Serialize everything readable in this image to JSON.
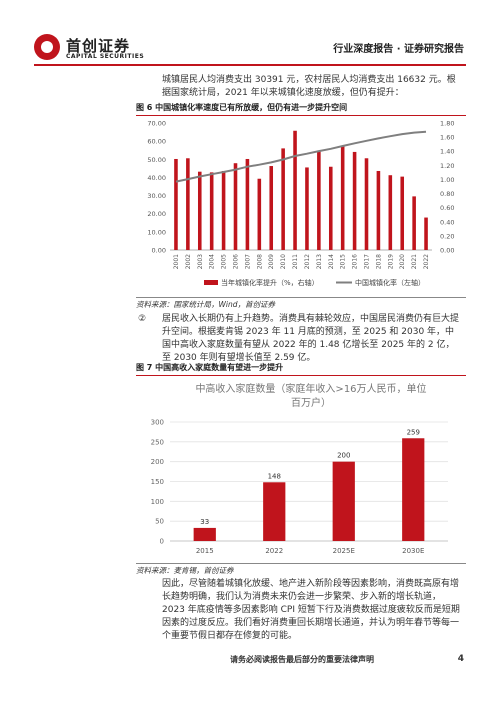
{
  "header": {
    "logo_cn": "首创证券",
    "logo_en": "CAPITAL SECURITIES",
    "report_type": "行业深度报告 · 证券研究报告"
  },
  "paragraphs": {
    "p1": "城镇居民人均消费支出 30391 元，农村居民人均消费支出 16632 元。根据国家统计局，2021 年以来城镇化速度放缓，但仍有提升：",
    "p2_num": "②",
    "p2": "居民收入长期仍有上升趋势。消费具有棘轮效应，中国居民消费仍有巨大提升空间。根据麦肯锡 2023 年 11 月底的预测，至 2025 和 2030 年，中国中高收入家庭数量有望从 2022 年的 1.48 亿增长至 2025 年的 2 亿，至 2030 年则有望增长值至 2.59 亿。",
    "p3": "因此，尽管随着城镇化放缓、地产进入新阶段等因素影响，消费既高原有增长趋势明确，我们认为消费未来仍会进一步繁荣、步入新的增长轨道，2023 年底疫情等多因素影响 CPI 短暂下行及消费数据过度疲软反而是短期因素的过度反应。我们看好消费重回长期增长通道，并认为明年春节等每一个重要节假日都存在修复的可能。"
  },
  "figure6": {
    "title": "图 6 中国城镇化率速度已有所放缓，但仍有进一步提升空间",
    "source": "资料来源：国家统计局，Wind，首创证券",
    "legend_bar": "当年城镇化率提升（%，右轴）",
    "legend_line": "中国城镇化率（左轴）"
  },
  "figure7": {
    "title": "图 7 中国高收入家庭数量有望进一步提升",
    "source": "资料来源：麦肯锡，首创证券",
    "inner_title_line1": "中高收入家庭数量（家庭年收入>16万人民币，单位",
    "inner_title_line2": "百万户）"
  },
  "chart_data": [
    {
      "type": "bar+line",
      "categories": [
        "2001",
        "2002",
        "2003",
        "2004",
        "2005",
        "2006",
        "2007",
        "2008",
        "2009",
        "2010",
        "2011",
        "2012",
        "2013",
        "2014",
        "2015",
        "2016",
        "2017",
        "2018",
        "2019",
        "2020",
        "2021",
        "2022"
      ],
      "left_axis": {
        "ylim": [
          0,
          70
        ],
        "ticks": [
          "0.00",
          "10.00",
          "20.00",
          "30.00",
          "40.00",
          "50.00",
          "60.00",
          "70.00"
        ]
      },
      "right_axis": {
        "ylim": [
          0,
          1.8
        ],
        "ticks": [
          "0.00",
          "0.20",
          "0.40",
          "0.60",
          "0.80",
          "1.00",
          "1.20",
          "1.40",
          "1.60",
          "1.80"
        ]
      },
      "series": [
        {
          "name": "当年城镇化率提升（%，右轴）",
          "type": "bar",
          "axis": "right",
          "color": "#c0141c",
          "values": [
            1.29,
            1.3,
            1.11,
            1.1,
            1.12,
            1.23,
            1.29,
            1.01,
            1.19,
            1.44,
            1.69,
            1.17,
            1.41,
            1.18,
            1.48,
            1.39,
            1.3,
            1.12,
            1.06,
            1.04,
            0.76,
            0.46
          ]
        },
        {
          "name": "中国城镇化率（左轴）",
          "type": "line",
          "axis": "left",
          "color": "#7f7f7f",
          "values": [
            37.7,
            39.1,
            40.5,
            41.8,
            43.0,
            44.3,
            45.9,
            47.0,
            48.3,
            49.9,
            51.8,
            53.1,
            54.5,
            55.8,
            57.3,
            58.8,
            60.2,
            61.5,
            62.7,
            63.9,
            64.7,
            65.2
          ]
        }
      ],
      "legend_position": "bottom"
    },
    {
      "type": "bar",
      "categories": [
        "2015",
        "2022",
        "2025E",
        "2030E"
      ],
      "values": [
        33,
        148,
        200,
        259
      ],
      "ylim": [
        0,
        300
      ],
      "ticks": [
        "0",
        "50",
        "100",
        "150",
        "200",
        "250",
        "300"
      ],
      "color": "#c0141c"
    }
  ],
  "footer": {
    "disclaimer": "请务必阅读报告最后部分的重要法律声明",
    "page": "4"
  }
}
